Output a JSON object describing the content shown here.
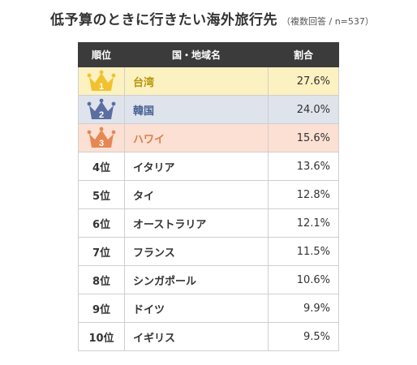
{
  "title": "低予算のときに行きたい海外旅行先",
  "subtitle": "（複数回答 / n=537）",
  "columns": [
    "順位",
    "国・地域名",
    "割合"
  ],
  "crown_colors": [
    "#f2c12e",
    "#5a6fa0",
    "#e58855"
  ],
  "rows": [
    {
      "rank": "1",
      "name": "台湾",
      "pct": "27.6%"
    },
    {
      "rank": "2",
      "name": "韓国",
      "pct": "24.0%"
    },
    {
      "rank": "3",
      "name": "ハワイ",
      "pct": "15.6%"
    },
    {
      "rank": "4位",
      "name": "イタリア",
      "pct": "13.6%"
    },
    {
      "rank": "5位",
      "name": "タイ",
      "pct": "12.8%"
    },
    {
      "rank": "6位",
      "name": "オーストラリア",
      "pct": "12.1%"
    },
    {
      "rank": "7位",
      "name": "フランス",
      "pct": "11.5%"
    },
    {
      "rank": "8位",
      "name": "シンガポール",
      "pct": "10.6%"
    },
    {
      "rank": "9位",
      "name": "ドイツ",
      "pct": "9.9%"
    },
    {
      "rank": "10位",
      "name": "イギリス",
      "pct": "9.5%"
    }
  ],
  "chart_data": {
    "type": "table",
    "categories": [
      "台湾",
      "韓国",
      "ハワイ",
      "イタリア",
      "タイ",
      "オーストラリア",
      "フランス",
      "シンガポール",
      "ドイツ",
      "イギリス"
    ],
    "values": [
      27.6,
      24.0,
      15.6,
      13.6,
      12.8,
      12.1,
      11.5,
      10.6,
      9.9,
      9.5
    ],
    "title": "低予算のときに行きたい海外旅行先",
    "subtitle": "（複数回答 / n=537）"
  }
}
